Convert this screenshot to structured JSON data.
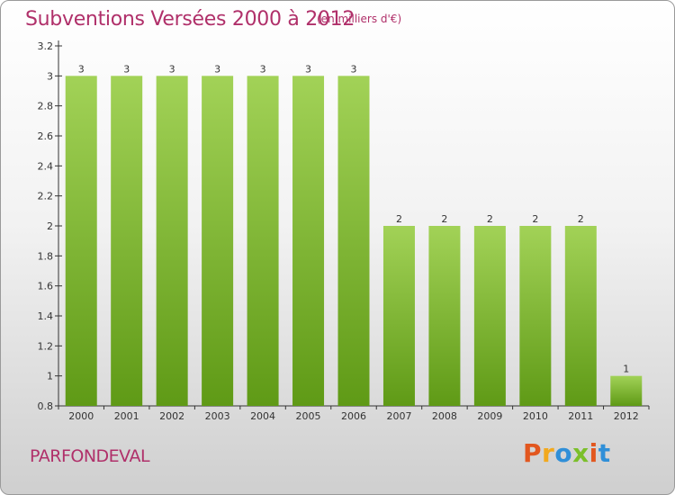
{
  "header": {
    "title": "Subventions Versées 2000 à 2012",
    "subtitle": "(en milliers d'€)"
  },
  "footer": {
    "commune": "PARFONDEVAL",
    "logo_text": "Proxiti"
  },
  "colors": {
    "title": "#b0306a",
    "bar_top": "#a2d257",
    "bar_bottom": "#5f9a16",
    "axis": "#333333"
  },
  "chart_data": {
    "type": "bar",
    "title": "Subventions Versées 2000 à 2012",
    "subtitle": "(en milliers d'€)",
    "categories": [
      "2000",
      "2001",
      "2002",
      "2003",
      "2004",
      "2005",
      "2006",
      "2007",
      "2008",
      "2009",
      "2010",
      "2011",
      "2012"
    ],
    "values": [
      3,
      3,
      3,
      3,
      3,
      3,
      3,
      2,
      2,
      2,
      2,
      2,
      1
    ],
    "data_labels": [
      "3",
      "3",
      "3",
      "3",
      "3",
      "3",
      "3",
      "2",
      "2",
      "2",
      "2",
      "2",
      "1"
    ],
    "ylim": [
      0.8,
      3.2
    ],
    "yticks": [
      0.8,
      1,
      1.2,
      1.4,
      1.6,
      1.8,
      2,
      2.2,
      2.4,
      2.6,
      2.8,
      3,
      3.2
    ],
    "ytick_labels": [
      "0.8",
      "1",
      "1.2",
      "1.4",
      "1.6",
      "1.8",
      "2",
      "2.2",
      "2.4",
      "2.6",
      "2.8",
      "3",
      "3.2"
    ],
    "xlabel": "",
    "ylabel": "",
    "grid": false,
    "legend": "none"
  }
}
